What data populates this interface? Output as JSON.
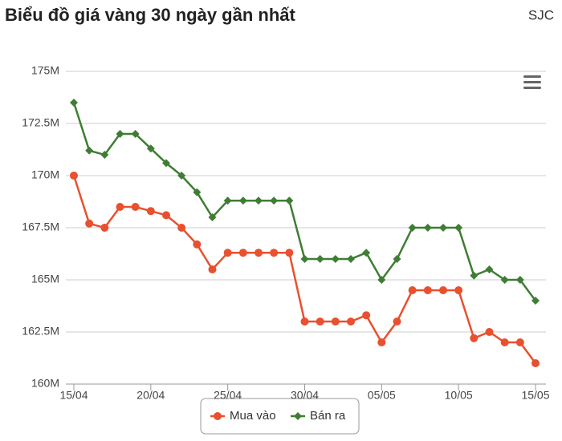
{
  "chart_data": {
    "type": "line",
    "title": "Biểu đồ giá vàng 30 ngày gần nhất",
    "subtitle": "SJC",
    "categories": [
      "15/04",
      null,
      null,
      null,
      null,
      "20/04",
      null,
      null,
      null,
      null,
      "25/04",
      null,
      null,
      null,
      null,
      "30/04",
      null,
      null,
      null,
      null,
      "05/05",
      null,
      null,
      null,
      null,
      "10/05",
      null,
      null,
      null,
      null,
      "15/05"
    ],
    "series": [
      {
        "name": "Mua vào",
        "color": "#e8502f",
        "marker": "circle",
        "values": [
          170.0,
          167.7,
          167.5,
          168.5,
          168.5,
          168.3,
          168.1,
          167.5,
          166.7,
          165.5,
          166.3,
          166.3,
          166.3,
          166.3,
          166.3,
          163.0,
          163.0,
          163.0,
          163.0,
          163.3,
          162.0,
          163.0,
          164.5,
          164.5,
          164.5,
          164.5,
          162.2,
          162.5,
          162.0,
          162.0,
          161.0
        ]
      },
      {
        "name": "Bán ra",
        "color": "#3f7d34",
        "marker": "diamond",
        "values": [
          173.5,
          171.2,
          171.0,
          172.0,
          172.0,
          171.3,
          170.6,
          170.0,
          169.2,
          168.0,
          168.8,
          168.8,
          168.8,
          168.8,
          168.8,
          166.0,
          166.0,
          166.0,
          166.0,
          166.3,
          165.0,
          166.0,
          167.5,
          167.5,
          167.5,
          167.5,
          165.2,
          165.5,
          165.0,
          165.0,
          164.0
        ]
      }
    ],
    "ylim": [
      160,
      175
    ],
    "yticks": [
      {
        "value": 160,
        "label": "160M"
      },
      {
        "value": 162.5,
        "label": "162.5M"
      },
      {
        "value": 165,
        "label": "165M"
      },
      {
        "value": 167.5,
        "label": "167.5M"
      },
      {
        "value": 170,
        "label": "170M"
      },
      {
        "value": 172.5,
        "label": "172.5M"
      },
      {
        "value": 175,
        "label": "175M"
      }
    ],
    "grid": true,
    "legend": "bottom"
  }
}
